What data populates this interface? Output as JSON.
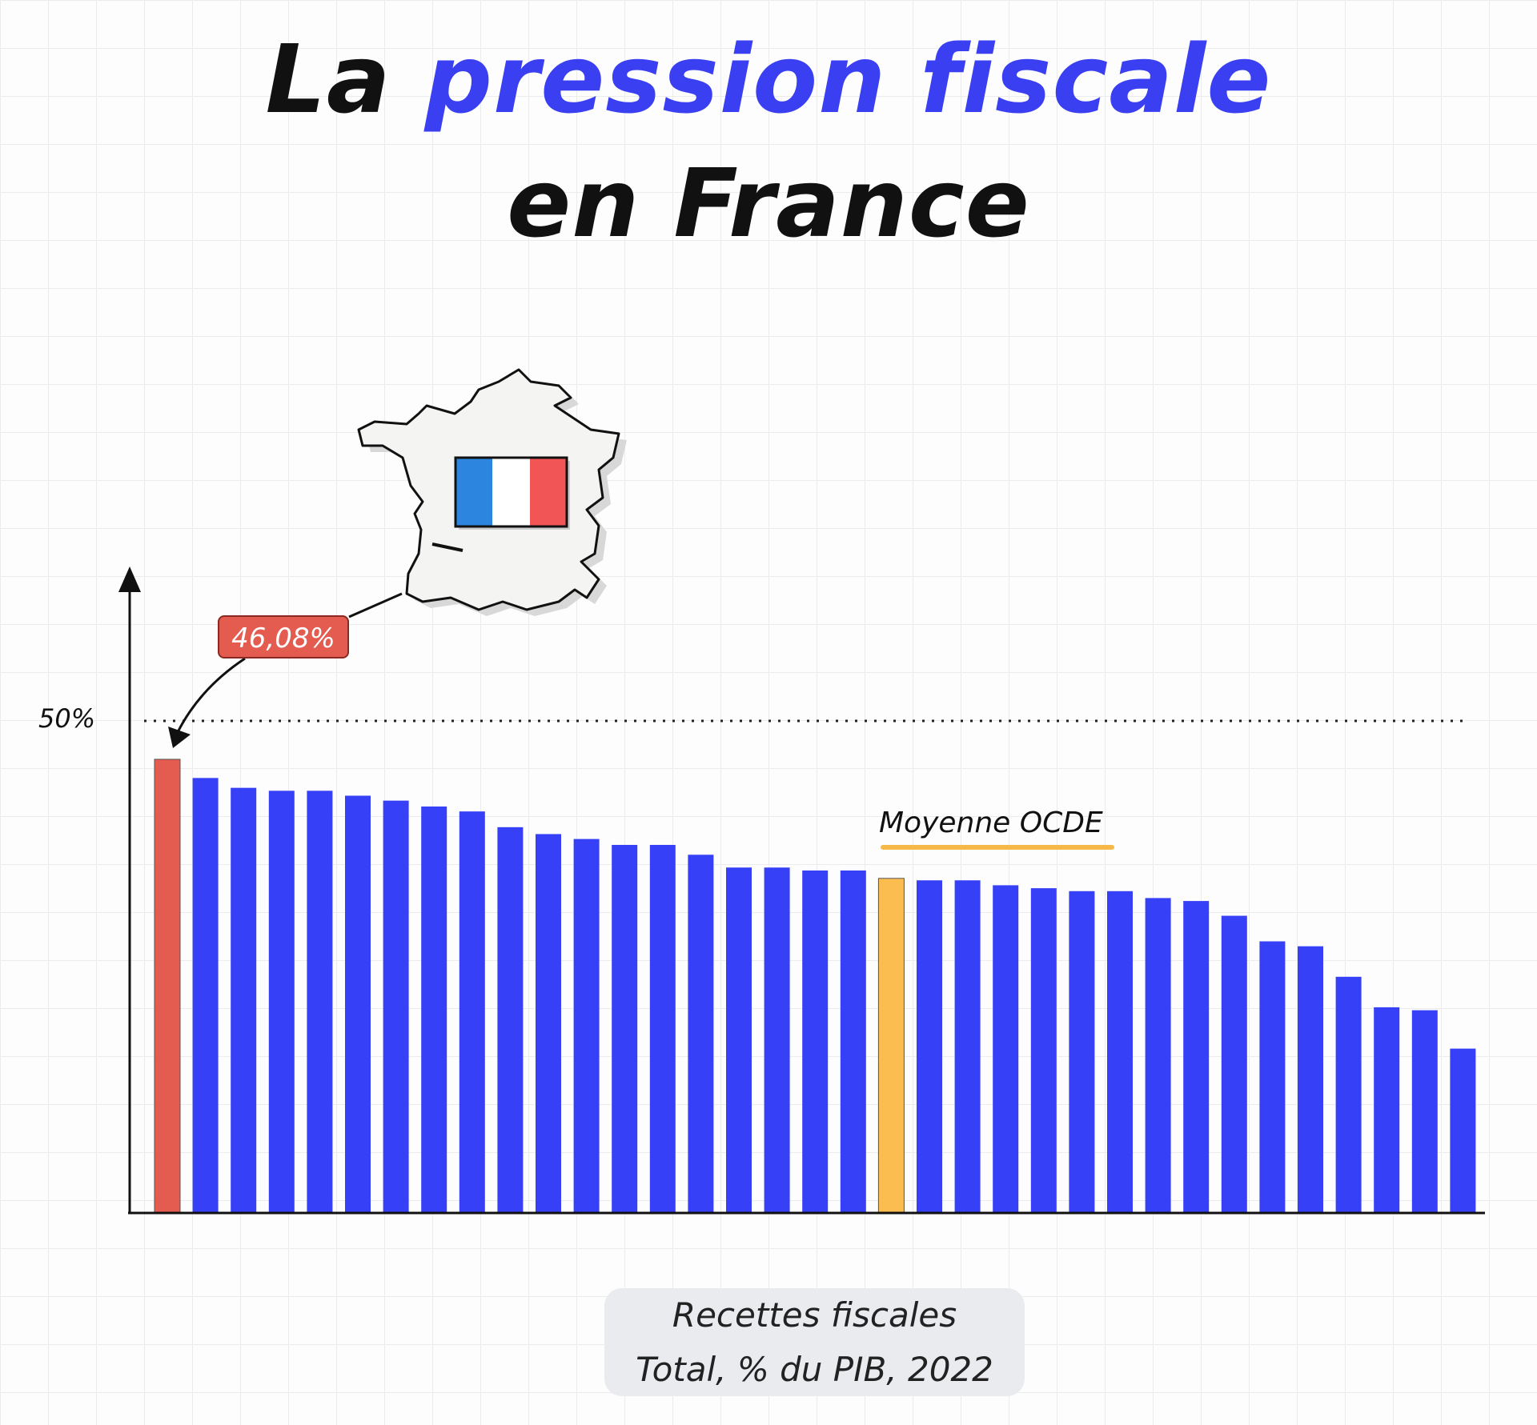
{
  "title": {
    "part1": "La ",
    "part2_highlight": "pression fiscale",
    "line2": "en France"
  },
  "colors": {
    "bar": "#3640f7",
    "france": "#e45c50",
    "oecd": "#fbbd50",
    "title_blue": "#3a3ff2"
  },
  "annotations": {
    "france_value": "46,08%",
    "oecd_label": "Moyenne OCDE",
    "map": "france-map-with-flag"
  },
  "source": {
    "line1": "Recettes fiscales",
    "line2": "Total, % du PIB, 2022"
  },
  "chart_data": {
    "type": "bar",
    "title": "La pression fiscale en France",
    "xlabel": "",
    "ylabel": "Recettes fiscales, Total, % du PIB, 2022",
    "ylim": [
      0,
      55
    ],
    "reference_line": {
      "value": 50,
      "label": "50%",
      "style": "dotted"
    },
    "highlight": {
      "france_index": 0,
      "oecd_index": 19
    },
    "values": [
      46.1,
      44.2,
      43.2,
      42.9,
      42.9,
      42.4,
      41.9,
      41.3,
      40.8,
      39.2,
      38.5,
      38.0,
      37.4,
      37.4,
      36.4,
      35.1,
      35.1,
      34.8,
      34.8,
      34.0,
      33.8,
      33.8,
      33.3,
      33.0,
      32.7,
      32.7,
      32.0,
      31.7,
      30.2,
      27.6,
      27.1,
      24.0,
      20.9,
      20.6,
      16.7
    ]
  }
}
